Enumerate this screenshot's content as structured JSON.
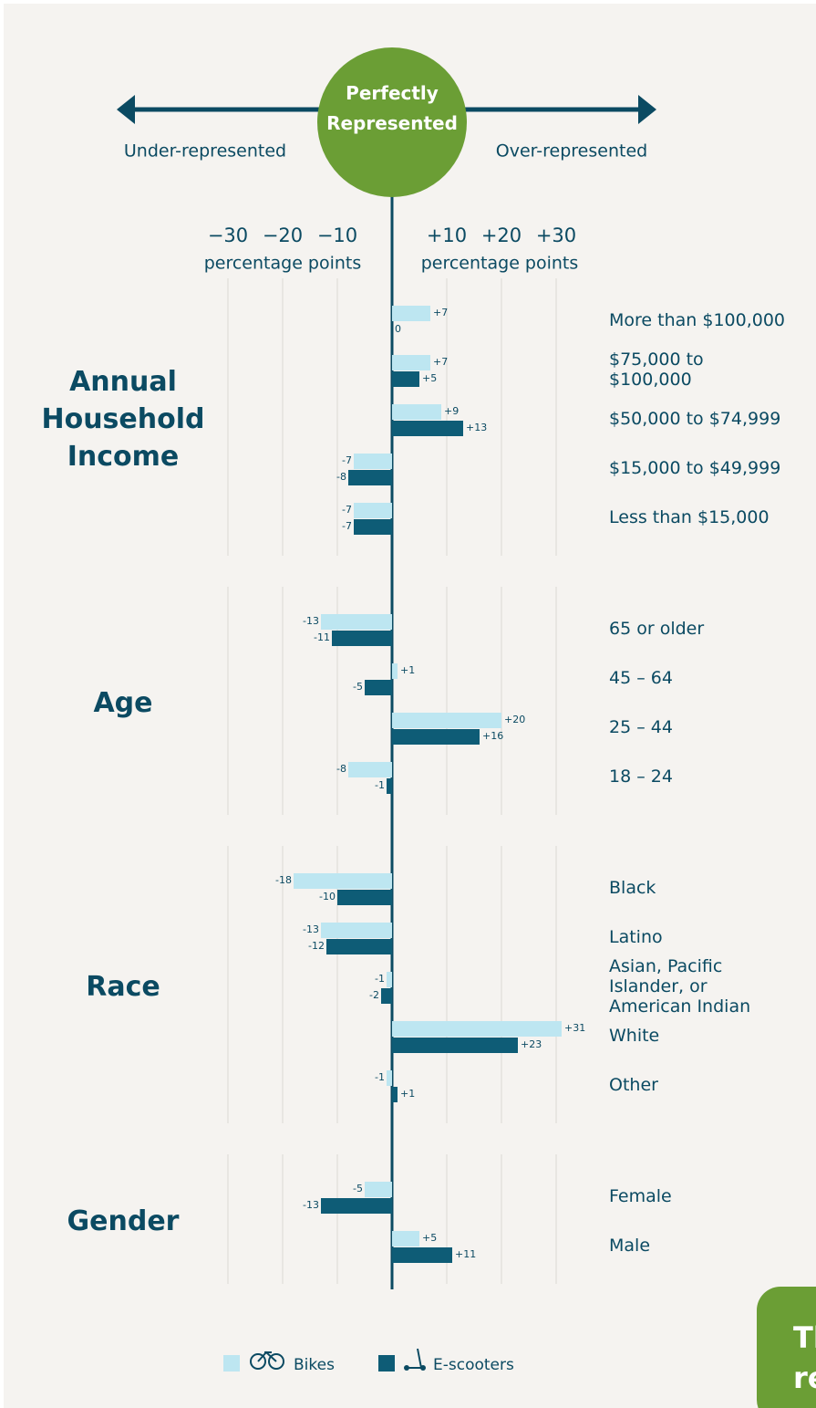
{
  "chart_data": {
    "type": "bar",
    "center_label": "Perfectly Represented",
    "left_label": "Under-represented",
    "right_label": "Over-represented",
    "axis_labels": [
      "percentage points",
      "percentage points"
    ],
    "xlim": [
      -30,
      30
    ],
    "xticks": [
      {
        "value": -30,
        "label": "−30"
      },
      {
        "value": -20,
        "label": "−20"
      },
      {
        "value": -10,
        "label": "−10"
      },
      {
        "value": 10,
        "label": "+10"
      },
      {
        "value": 20,
        "label": "+20"
      },
      {
        "value": 30,
        "label": "+30"
      }
    ],
    "grid": true,
    "legend": [
      {
        "name": "Bikes",
        "color": "#bde6f1"
      },
      {
        "name": "E-scooters",
        "color": "#0e5c76"
      }
    ],
    "panels": [
      {
        "title": "Annual Household Income",
        "categories": [
          "More than $100,000",
          "$75,000 to $100,000",
          "$50,000 to $74,999",
          "$15,000 to $49,999",
          "Less than $15,000"
        ],
        "series": [
          {
            "values": [
              7,
              7,
              9,
              -7,
              -7
            ],
            "value_labels": [
              "+7",
              "+7",
              "+9",
              "-7",
              "-7"
            ]
          },
          {
            "values": [
              0,
              5,
              13,
              -8,
              -7
            ],
            "value_labels": [
              "0",
              "+5",
              "+13",
              "-8",
              "-7"
            ]
          }
        ]
      },
      {
        "title": "Age",
        "categories": [
          "65 or older",
          "45 – 64",
          "25 – 44",
          "18 – 24"
        ],
        "series": [
          {
            "values": [
              -13,
              1,
              20,
              -8
            ],
            "value_labels": [
              "-13",
              "+1",
              "+20",
              "-8"
            ]
          },
          {
            "values": [
              -11,
              -5,
              16,
              -1
            ],
            "value_labels": [
              "-11",
              "-5",
              "+16",
              "-1"
            ]
          }
        ]
      },
      {
        "title": "Race",
        "categories": [
          "Black",
          "Latino",
          "Asian, Pacific Islander, or American Indian",
          "White",
          "Other"
        ],
        "series": [
          {
            "values": [
              -18,
              -13,
              -1,
              31,
              -1
            ],
            "value_labels": [
              "-18",
              "-13",
              "-1",
              "+31",
              "-1"
            ]
          },
          {
            "values": [
              -10,
              -12,
              -2,
              23,
              1
            ],
            "value_labels": [
              "-10",
              "-12",
              "-2",
              "+23",
              "+1"
            ]
          }
        ]
      },
      {
        "title": "Gender",
        "categories": [
          "Female",
          "Male"
        ],
        "series": [
          {
            "values": [
              -5,
              5
            ],
            "value_labels": [
              "-5",
              "+5"
            ]
          },
          {
            "values": [
              -13,
              11
            ],
            "value_labels": [
              "-13",
              "+11"
            ]
          }
        ]
      }
    ],
    "corner_note": [
      "Th",
      "re"
    ]
  }
}
